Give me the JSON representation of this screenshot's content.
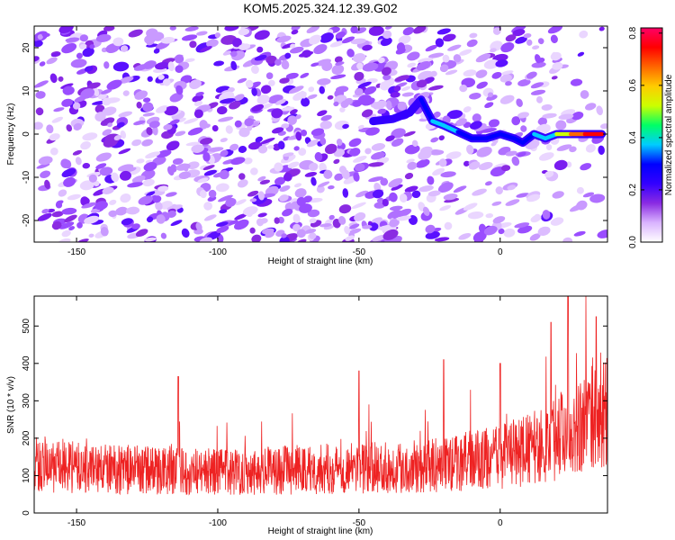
{
  "title": "KOM5.2025.324.12.39.G02",
  "chart_data": [
    {
      "type": "heatmap",
      "title": "KOM5.2025.324.12.39.G02",
      "xlabel": "Height of straight line (km)",
      "ylabel": "Frequency (Hz)",
      "xlim": [
        -165,
        38
      ],
      "ylim": [
        -25,
        25
      ],
      "xticks": [
        -150,
        -100,
        -50,
        0
      ],
      "yticks": [
        -20,
        -10,
        0,
        10,
        20
      ],
      "colorbar": {
        "label": "Normalized spectral amplitude",
        "range": [
          0,
          0.82
        ],
        "ticks": [
          0.0,
          0.2,
          0.4,
          0.6,
          0.8
        ],
        "stops": [
          "#ffffff",
          "#d9b3ff",
          "#8a2be2",
          "#3300ff",
          "#0000ff",
          "#00ccff",
          "#00ff66",
          "#ccff00",
          "#ffcc00",
          "#ff6600",
          "#ff0000",
          "#ff0066"
        ]
      },
      "ridge": {
        "description": "strong narrow band near 0 Hz",
        "x": [
          -45,
          -38,
          -32,
          -28,
          -24,
          -20,
          -15,
          -10,
          -5,
          0,
          5,
          8,
          12,
          16,
          20,
          25,
          30,
          36
        ],
        "y": [
          3,
          3.5,
          5,
          8,
          3,
          2,
          0.5,
          -1,
          -1,
          0,
          -1,
          -2,
          0,
          -1,
          0,
          0,
          0,
          0
        ],
        "amplitude": [
          0.25,
          0.25,
          0.2,
          0.22,
          0.35,
          0.38,
          0.35,
          0.3,
          0.33,
          0.3,
          0.35,
          0.3,
          0.35,
          0.35,
          0.4,
          0.6,
          0.8,
          0.75
        ]
      }
    },
    {
      "type": "line",
      "xlabel": "Height of straight line (km)",
      "ylabel": "SNR (10 * v/v)",
      "xlim": [
        -165,
        38
      ],
      "ylim": [
        0,
        580
      ],
      "xticks": [
        -150,
        -100,
        -50,
        0
      ],
      "yticks": [
        0,
        100,
        200,
        300,
        400,
        500
      ],
      "series": [
        {
          "name": "SNR",
          "color": "#ee2222",
          "trend_x": [
            -165,
            -150,
            -125,
            -100,
            -75,
            -50,
            -25,
            0,
            15,
            25,
            38
          ],
          "trend_y": [
            125,
            120,
            115,
            110,
            115,
            120,
            125,
            150,
            180,
            230,
            265
          ],
          "peaks_x": [
            -114,
            -50,
            -20,
            0,
            18,
            24,
            34
          ],
          "peaks_y": [
            365,
            380,
            410,
            400,
            510,
            580,
            525
          ]
        }
      ]
    }
  ]
}
